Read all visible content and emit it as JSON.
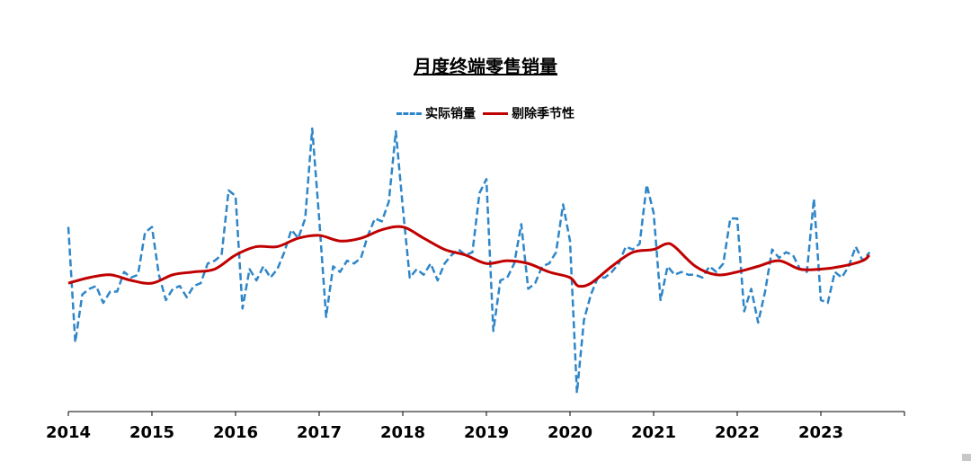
{
  "chart_data": {
    "type": "line",
    "title": "月度终端零售销量",
    "xlabel": "",
    "ylabel": "",
    "x_tick_labels": [
      "2014",
      "2015",
      "2016",
      "2017",
      "2018",
      "2019",
      "2020",
      "2021",
      "2022",
      "2023"
    ],
    "xlim": [
      2014.0,
      2024.0
    ],
    "ylim": [
      0,
      100
    ],
    "grid": false,
    "legend_position": "top-center",
    "series": [
      {
        "name": "实际销量",
        "style": "dashed",
        "color": "#2E86C8",
        "x": [
          2014.0,
          2014.083,
          2014.167,
          2014.25,
          2014.333,
          2014.417,
          2014.5,
          2014.583,
          2014.667,
          2014.75,
          2014.833,
          2014.917,
          2015.0,
          2015.083,
          2015.167,
          2015.25,
          2015.333,
          2015.417,
          2015.5,
          2015.583,
          2015.667,
          2015.75,
          2015.833,
          2015.917,
          2016.0,
          2016.083,
          2016.167,
          2016.25,
          2016.333,
          2016.417,
          2016.5,
          2016.583,
          2016.667,
          2016.75,
          2016.833,
          2016.917,
          2017.0,
          2017.083,
          2017.167,
          2017.25,
          2017.333,
          2017.417,
          2017.5,
          2017.583,
          2017.667,
          2017.75,
          2017.833,
          2017.917,
          2018.0,
          2018.083,
          2018.167,
          2018.25,
          2018.333,
          2018.417,
          2018.5,
          2018.583,
          2018.667,
          2018.75,
          2018.833,
          2018.917,
          2019.0,
          2019.083,
          2019.167,
          2019.25,
          2019.333,
          2019.417,
          2019.5,
          2019.583,
          2019.667,
          2019.75,
          2019.833,
          2019.917,
          2020.0,
          2020.083,
          2020.167,
          2020.25,
          2020.333,
          2020.417,
          2020.5,
          2020.583,
          2020.667,
          2020.75,
          2020.833,
          2020.917,
          2021.0,
          2021.083,
          2021.167,
          2021.25,
          2021.333,
          2021.417,
          2021.5,
          2021.583,
          2021.667,
          2021.75,
          2021.833,
          2021.917,
          2022.0,
          2022.083,
          2022.167,
          2022.25,
          2022.333,
          2022.417,
          2022.5,
          2022.583,
          2022.667,
          2022.75,
          2022.833,
          2022.917,
          2023.0,
          2023.083,
          2023.167,
          2023.25,
          2023.333,
          2023.417,
          2023.5,
          2023.583
        ],
        "values": [
          65,
          24,
          41,
          43,
          44,
          38,
          42,
          42,
          49,
          47,
          48,
          63,
          65,
          48,
          39,
          43,
          44,
          40,
          44,
          45,
          52,
          53,
          55,
          78,
          76,
          36,
          50,
          46,
          51,
          47,
          50,
          56,
          64,
          61,
          68,
          100,
          68,
          33,
          51,
          49,
          53,
          52,
          54,
          62,
          68,
          67,
          74,
          99,
          72,
          47,
          50,
          48,
          52,
          46,
          52,
          55,
          57,
          55,
          56,
          77,
          82,
          28,
          46,
          47,
          52,
          66,
          43,
          45,
          51,
          52,
          56,
          73,
          60,
          6,
          32,
          41,
          47,
          47,
          49,
          52,
          58,
          57,
          59,
          80,
          70,
          39,
          51,
          48,
          49,
          48,
          48,
          47,
          51,
          49,
          52,
          68,
          68,
          35,
          43,
          31,
          42,
          57,
          54,
          56,
          55,
          50,
          49,
          75,
          39,
          38,
          49,
          47,
          51,
          58,
          53,
          56
        ]
      },
      {
        "name": "剔除季节性",
        "style": "solid",
        "color": "#C00000",
        "x": [
          2014.0,
          2014.25,
          2014.5,
          2014.75,
          2015.0,
          2015.25,
          2015.5,
          2015.75,
          2016.0,
          2016.25,
          2016.5,
          2016.75,
          2017.0,
          2017.25,
          2017.5,
          2017.75,
          2018.0,
          2018.25,
          2018.5,
          2018.75,
          2019.0,
          2019.25,
          2019.5,
          2019.75,
          2020.0,
          2020.1,
          2020.25,
          2020.5,
          2020.75,
          2021.0,
          2021.15,
          2021.25,
          2021.5,
          2021.75,
          2022.0,
          2022.25,
          2022.5,
          2022.75,
          2023.0,
          2023.25,
          2023.5,
          2023.58
        ],
        "values": [
          45,
          47,
          48,
          46,
          45,
          48,
          49,
          50,
          55,
          58,
          58,
          61,
          62,
          60,
          61,
          64,
          65,
          61,
          57,
          55,
          52,
          53,
          52,
          49,
          47,
          44,
          45,
          51,
          56,
          57,
          59,
          58,
          51,
          48,
          49,
          51,
          53,
          50,
          50,
          51,
          53,
          55
        ]
      }
    ]
  }
}
